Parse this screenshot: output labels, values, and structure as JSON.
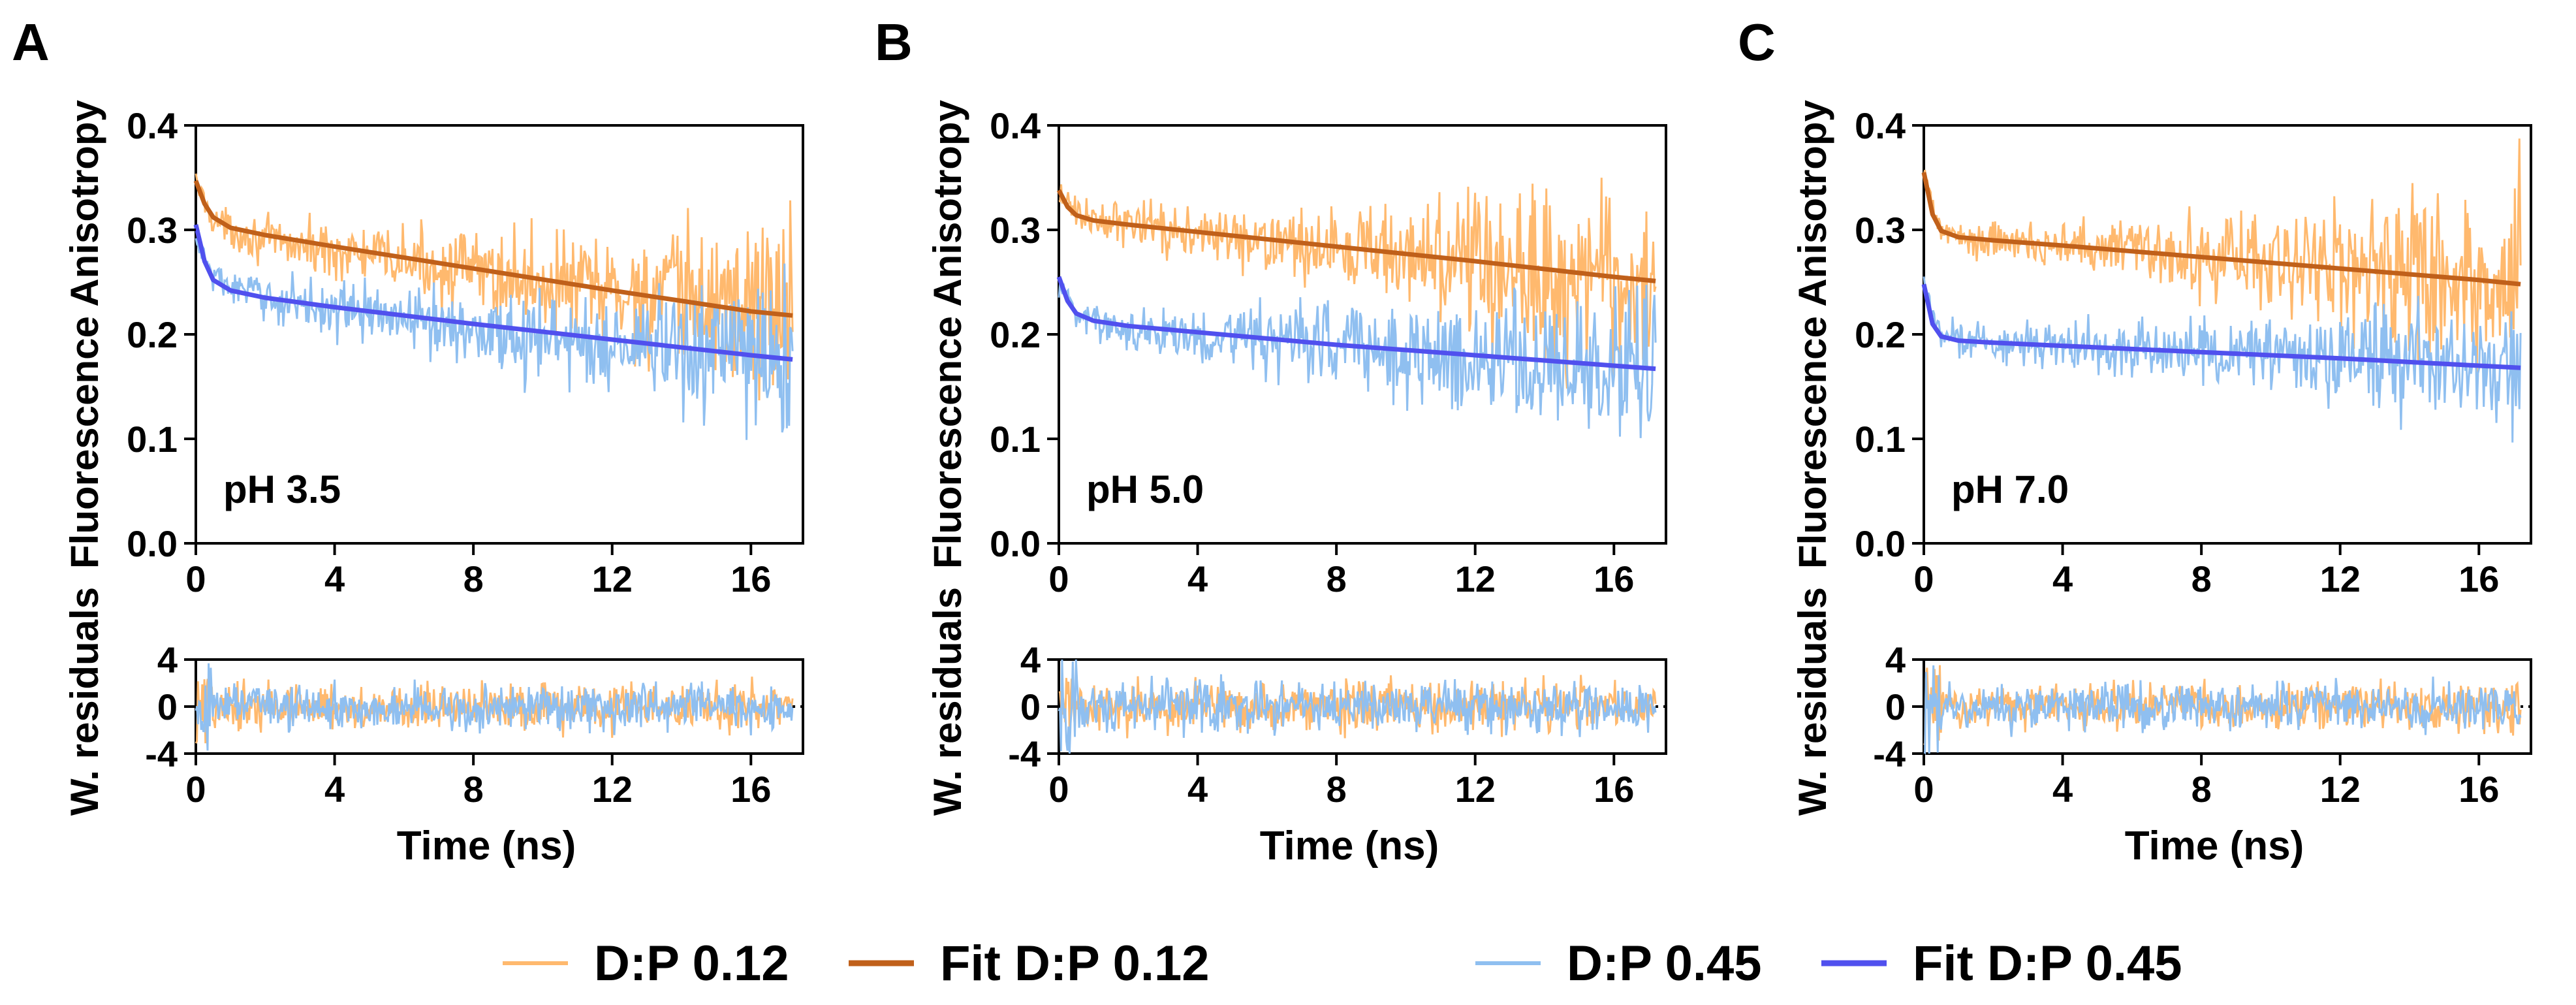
{
  "colors": {
    "data_low": "#FFB96E",
    "fit_low": "#C0601A",
    "data_high": "#8FBFF0",
    "fit_high": "#5050EE"
  },
  "legend": {
    "items": [
      {
        "label": "D:P 0.12",
        "series": "data_low"
      },
      {
        "label": "Fit D:P 0.12",
        "series": "fit_low"
      },
      {
        "label": "D:P 0.45",
        "series": "data_high"
      },
      {
        "label": "Fit D:P 0.45",
        "series": "fit_high"
      }
    ]
  },
  "chart_data": [
    {
      "panel": "A",
      "type": "line",
      "annotation": "pH 3.5",
      "anisotropy": {
        "ylabel": "Fluorescence Anisotropy",
        "xlim": [
          0,
          17.5
        ],
        "ylim": [
          0,
          0.4
        ],
        "xticks": [
          "0",
          "4",
          "8",
          "12",
          "16"
        ],
        "yticks": [
          "0.0",
          "0.1",
          "0.2",
          "0.3",
          "0.4"
        ],
        "series": [
          {
            "name": "D:P 0.12",
            "x": [
              0,
              0.5,
              1,
              2,
              4,
              6,
              8,
              10,
              12,
              14,
              16,
              17.2
            ],
            "values": [
              0.345,
              0.31,
              0.3,
              0.29,
              0.28,
              0.27,
              0.26,
              0.25,
              0.24,
              0.235,
              0.23,
              0.225
            ],
            "noise": [
              0.01,
              0.01,
              0.012,
              0.015,
              0.018,
              0.022,
              0.028,
              0.035,
              0.04,
              0.05,
              0.06,
              0.065
            ]
          },
          {
            "name": "Fit D:P 0.12",
            "x": [
              0,
              0.25,
              0.5,
              1,
              2,
              4,
              8,
              12,
              16,
              17.2
            ],
            "values": [
              0.347,
              0.325,
              0.312,
              0.302,
              0.295,
              0.284,
              0.263,
              0.242,
              0.222,
              0.218
            ]
          },
          {
            "name": "D:P 0.45",
            "x": [
              0,
              0.5,
              1,
              2,
              4,
              6,
              8,
              10,
              12,
              14,
              16,
              17.2
            ],
            "values": [
              0.29,
              0.255,
              0.245,
              0.235,
              0.225,
              0.215,
              0.205,
              0.195,
              0.19,
              0.185,
              0.18,
              0.175
            ],
            "noise": [
              0.01,
              0.01,
              0.012,
              0.015,
              0.018,
              0.02,
              0.025,
              0.03,
              0.035,
              0.04,
              0.05,
              0.055
            ]
          },
          {
            "name": "Fit D:P 0.45",
            "x": [
              0,
              0.25,
              0.5,
              1,
              2,
              4,
              8,
              12,
              16,
              17.2
            ],
            "values": [
              0.305,
              0.27,
              0.252,
              0.242,
              0.235,
              0.226,
              0.21,
              0.195,
              0.18,
              0.176
            ]
          }
        ]
      },
      "residuals": {
        "ylabel": "W. residuals",
        "xlabel": "Time (ns)",
        "xlim": [
          0,
          17.5
        ],
        "ylim": [
          -4,
          4
        ],
        "xticks": [
          "0",
          "4",
          "8",
          "12",
          "16"
        ],
        "yticks": [
          "-4",
          "0",
          "4"
        ],
        "amplitude": 1.2
      }
    },
    {
      "panel": "B",
      "type": "line",
      "annotation": "pH 5.0",
      "anisotropy": {
        "ylabel": "Fluorescence Anisotropy",
        "xlim": [
          0,
          17.5
        ],
        "ylim": [
          0,
          0.4
        ],
        "xticks": [
          "0",
          "4",
          "8",
          "12",
          "16"
        ],
        "yticks": [
          "0.0",
          "0.1",
          "0.2",
          "0.3",
          "0.4"
        ],
        "series": [
          {
            "name": "D:P 0.12",
            "x": [
              0,
              0.5,
              1,
              2,
              4,
              6,
              8,
              10,
              12,
              14,
              16,
              17.2
            ],
            "values": [
              0.335,
              0.315,
              0.31,
              0.305,
              0.295,
              0.285,
              0.28,
              0.275,
              0.265,
              0.26,
              0.255,
              0.25
            ],
            "noise": [
              0.01,
              0.01,
              0.012,
              0.015,
              0.018,
              0.022,
              0.028,
              0.035,
              0.045,
              0.055,
              0.06,
              0.07
            ]
          },
          {
            "name": "Fit D:P 0.12",
            "x": [
              0,
              0.25,
              0.5,
              1,
              2,
              4,
              8,
              12,
              16,
              17.2
            ],
            "values": [
              0.338,
              0.322,
              0.314,
              0.309,
              0.305,
              0.298,
              0.284,
              0.27,
              0.255,
              0.251
            ]
          },
          {
            "name": "D:P 0.45",
            "x": [
              0,
              0.5,
              1,
              2,
              4,
              6,
              8,
              10,
              12,
              14,
              16,
              17.2
            ],
            "values": [
              0.25,
              0.22,
              0.212,
              0.205,
              0.2,
              0.195,
              0.19,
              0.185,
              0.18,
              0.175,
              0.17,
              0.165
            ],
            "noise": [
              0.01,
              0.01,
              0.012,
              0.015,
              0.02,
              0.025,
              0.03,
              0.035,
              0.04,
              0.045,
              0.05,
              0.06
            ]
          },
          {
            "name": "Fit D:P 0.45",
            "x": [
              0,
              0.25,
              0.5,
              1,
              2,
              4,
              8,
              12,
              16,
              17.2
            ],
            "values": [
              0.255,
              0.232,
              0.22,
              0.213,
              0.208,
              0.202,
              0.19,
              0.18,
              0.17,
              0.167
            ]
          }
        ]
      },
      "residuals": {
        "ylabel": "W. residuals",
        "xlabel": "Time (ns)",
        "xlim": [
          0,
          17.5
        ],
        "ylim": [
          -4,
          4
        ],
        "xticks": [
          "0",
          "4",
          "8",
          "12",
          "16"
        ],
        "yticks": [
          "-4",
          "0",
          "4"
        ],
        "amplitude": 1.3
      }
    },
    {
      "panel": "C",
      "type": "line",
      "annotation": "pH 7.0",
      "anisotropy": {
        "ylabel": "Fluorescence Anisotropy",
        "xlim": [
          0,
          17.5
        ],
        "ylim": [
          0,
          0.4
        ],
        "xticks": [
          "0",
          "4",
          "8",
          "12",
          "16"
        ],
        "yticks": [
          "0.0",
          "0.1",
          "0.2",
          "0.3",
          "0.4"
        ],
        "series": [
          {
            "name": "D:P 0.12",
            "x": [
              0,
              0.5,
              1,
              2,
              4,
              6,
              8,
              10,
              12,
              14,
              16,
              17.2
            ],
            "values": [
              0.35,
              0.3,
              0.295,
              0.29,
              0.285,
              0.28,
              0.275,
              0.27,
              0.265,
              0.26,
              0.255,
              0.25
            ],
            "noise": [
              0.01,
              0.01,
              0.012,
              0.015,
              0.018,
              0.022,
              0.028,
              0.035,
              0.045,
              0.055,
              0.065,
              0.07
            ]
          },
          {
            "name": "Fit D:P 0.12",
            "x": [
              0,
              0.25,
              0.5,
              1,
              2,
              4,
              8,
              12,
              16,
              17.2
            ],
            "values": [
              0.355,
              0.315,
              0.299,
              0.293,
              0.29,
              0.285,
              0.274,
              0.263,
              0.252,
              0.248
            ]
          },
          {
            "name": "D:P 0.45",
            "x": [
              0,
              0.5,
              1,
              2,
              4,
              6,
              8,
              10,
              12,
              14,
              16,
              17.2
            ],
            "values": [
              0.245,
              0.2,
              0.195,
              0.192,
              0.19,
              0.187,
              0.183,
              0.18,
              0.177,
              0.174,
              0.17,
              0.168
            ],
            "noise": [
              0.01,
              0.01,
              0.012,
              0.013,
              0.015,
              0.018,
              0.022,
              0.026,
              0.03,
              0.035,
              0.04,
              0.045
            ]
          },
          {
            "name": "Fit D:P 0.45",
            "x": [
              0,
              0.25,
              0.5,
              1,
              2,
              4,
              8,
              12,
              16,
              17.2
            ],
            "values": [
              0.248,
              0.21,
              0.198,
              0.194,
              0.192,
              0.189,
              0.183,
              0.177,
              0.17,
              0.168
            ]
          }
        ]
      },
      "residuals": {
        "ylabel": "W. residuals",
        "xlabel": "Time (ns)",
        "xlim": [
          0,
          17.5
        ],
        "ylim": [
          -4,
          4
        ],
        "xticks": [
          "0",
          "4",
          "8",
          "12",
          "16"
        ],
        "yticks": [
          "-4",
          "0",
          "4"
        ],
        "amplitude": 1.2
      }
    }
  ]
}
